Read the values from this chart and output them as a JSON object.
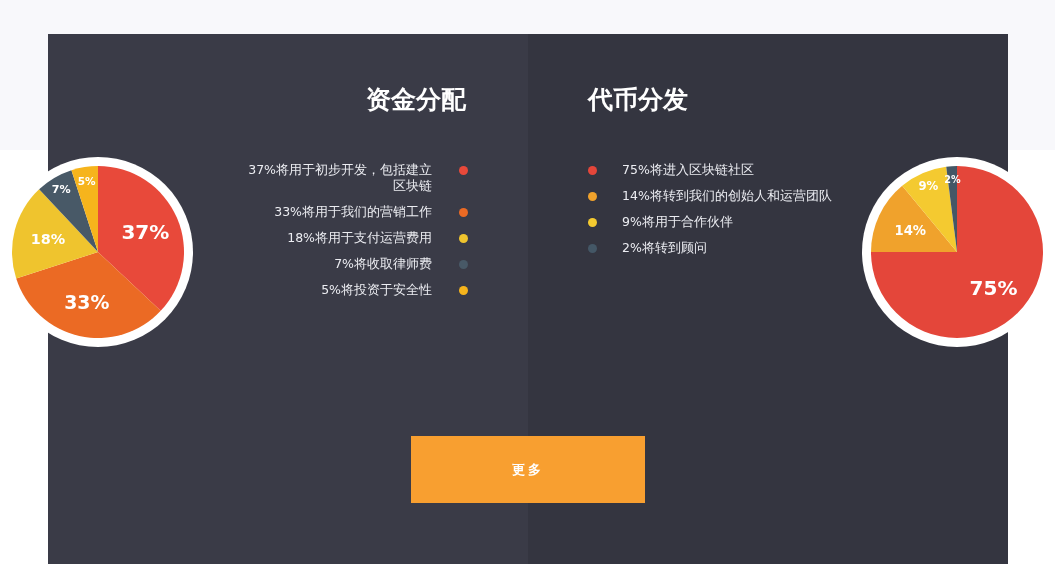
{
  "chart_data": [
    {
      "type": "pie",
      "title": "资金分配",
      "categories": [
        "37%将用于初步开发，包括建立区块链",
        "33%将用于我们的营销工作",
        "18%将用于支付运营费用",
        "7%将收取律师费",
        "5%将投资于安全性"
      ],
      "values": [
        37,
        33,
        18,
        7,
        5
      ],
      "value_labels": [
        "37%",
        "33%",
        "18%",
        "7%",
        "5%"
      ],
      "colors": [
        "#e8493a",
        "#eb6a24",
        "#efc42e",
        "#485967",
        "#f6b41c"
      ],
      "legend": "right",
      "annotations": [
        "更多"
      ]
    },
    {
      "type": "pie",
      "title": "代币分发",
      "categories": [
        "75%将进入区块链社区",
        "14%将转到我们的创始人和运营团队",
        "9%将用于合作伙伴",
        "2%将转到顾问"
      ],
      "values": [
        75,
        14,
        9,
        2
      ],
      "value_labels": [
        "75%",
        "14%",
        "9%",
        "2%"
      ],
      "colors": [
        "#e4463a",
        "#f0a22c",
        "#f4ca30",
        "#445766"
      ],
      "legend": "left"
    }
  ]
}
